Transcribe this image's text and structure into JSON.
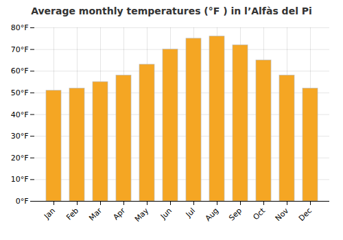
{
  "chart_data": {
    "type": "bar",
    "title": "Average monthly temperatures (°F ) in l’Alfàs del Pi",
    "categories": [
      "Jan",
      "Feb",
      "Mar",
      "Apr",
      "May",
      "Jun",
      "Jul",
      "Aug",
      "Sep",
      "Oct",
      "Nov",
      "Dec"
    ],
    "values": [
      51,
      52,
      55,
      58,
      63,
      70,
      75,
      76,
      72,
      65,
      58,
      52
    ],
    "color": "#F5A623",
    "ylim": [
      0,
      80
    ],
    "yticks": [
      {
        "value": 0,
        "label": "0°F"
      },
      {
        "value": 10,
        "label": "10°F"
      },
      {
        "value": 20,
        "label": "20°F"
      },
      {
        "value": 30,
        "label": "30°F"
      },
      {
        "value": 40,
        "label": "40°F"
      },
      {
        "value": 50,
        "label": "50°F"
      },
      {
        "value": 60,
        "label": "60°F"
      },
      {
        "value": 70,
        "label": "70°F"
      },
      {
        "value": 80,
        "label": "80°F"
      }
    ],
    "grid": true
  }
}
